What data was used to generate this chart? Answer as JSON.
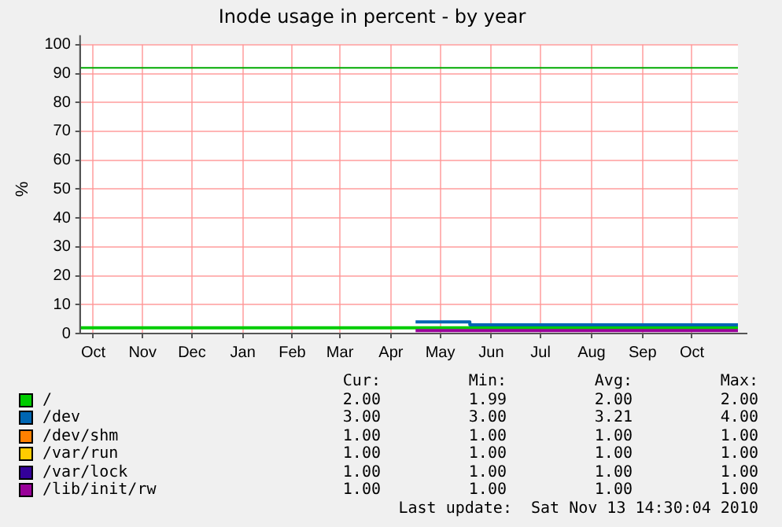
{
  "chart_data": {
    "type": "step",
    "title": "Inode usage in percent - by year",
    "ylabel": "%",
    "xlim": [
      "2009-10-09",
      "2010-11-13"
    ],
    "xticks": [
      {
        "value": "2009-10-17",
        "label": "Oct"
      },
      {
        "value": "2009-11-16",
        "label": "Nov"
      },
      {
        "value": "2009-12-16",
        "label": "Dec"
      },
      {
        "value": "2010-01-16",
        "label": "Jan"
      },
      {
        "value": "2010-02-15",
        "label": "Feb"
      },
      {
        "value": "2010-03-16",
        "label": "Mar"
      },
      {
        "value": "2010-04-16",
        "label": "Apr"
      },
      {
        "value": "2010-05-16",
        "label": "May"
      },
      {
        "value": "2010-06-16",
        "label": "Jun"
      },
      {
        "value": "2010-07-16",
        "label": "Jul"
      },
      {
        "value": "2010-08-16",
        "label": "Aug"
      },
      {
        "value": "2010-09-16",
        "label": "Sep"
      },
      {
        "value": "2010-10-16",
        "label": "Oct"
      }
    ],
    "ylim": [
      0,
      100
    ],
    "yticks": [
      0,
      10,
      20,
      30,
      40,
      50,
      60,
      70,
      80,
      90,
      100
    ],
    "series": [
      {
        "name": "/",
        "color": "#00cc00",
        "x": [
          "2009-10-09",
          "2010-11-13"
        ],
        "values": [
          2,
          2
        ]
      },
      {
        "name": "/dev",
        "color": "#0066b3",
        "x": [
          "2010-05-01",
          "2010-06-03",
          "2010-11-13"
        ],
        "values": [
          4,
          3,
          3
        ]
      },
      {
        "name": "/dev/shm",
        "color": "#ff8000"
      },
      {
        "name": "/var/run",
        "color": "#ffcc00"
      },
      {
        "name": "/var/lock",
        "color": "#330099"
      },
      {
        "name": "/lib/init/rw",
        "color": "#990099",
        "x": [
          "2010-05-01",
          "2010-11-13"
        ],
        "values": [
          1,
          1
        ]
      }
    ],
    "ref_lines": [
      {
        "axis": "y",
        "value": 92,
        "color": "#00aa00"
      }
    ],
    "grid": true,
    "legend": "bottom",
    "marker": "none",
    "line_style": "solid",
    "annotations": [
      "Cur:",
      "Min:",
      "Avg:",
      "Max:",
      "2.00",
      "1.99",
      "2.00",
      "2.00",
      "3.00",
      "3.00",
      "3.21",
      "4.00",
      "1.00",
      "1.00",
      "1.00",
      "1.00",
      "1.00",
      "1.00",
      "1.00",
      "1.00",
      "1.00",
      "1.00",
      "1.00",
      "1.00",
      "1.00",
      "1.00",
      "1.00",
      "1.00",
      "Last update:  Sat Nov 13 14:30:04 2010"
    ]
  }
}
